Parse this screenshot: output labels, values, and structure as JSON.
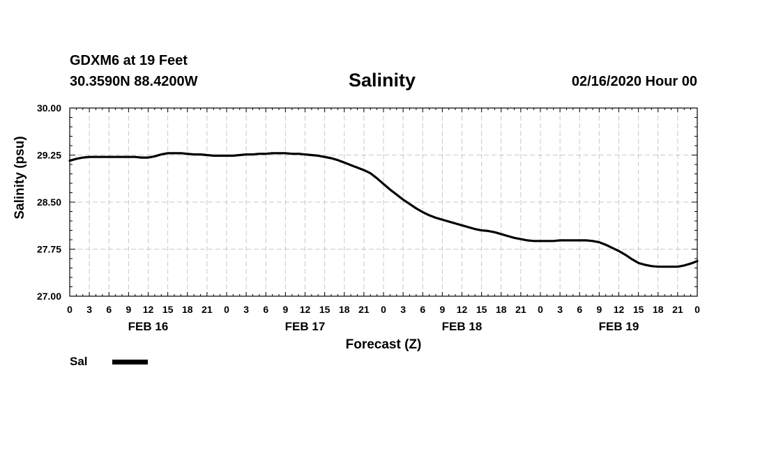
{
  "header": {
    "station": "GDXM6 at 19 Feet",
    "coords": "30.3590N 88.4200W",
    "run": "02/16/2020 Hour 00"
  },
  "chart_data": {
    "type": "line",
    "title": "Salinity",
    "xlabel": "Forecast (Z)",
    "ylabel": "Salinity (psu)",
    "ylim": [
      27.0,
      30.0
    ],
    "yticks": [
      "27.00",
      "27.75",
      "28.50",
      "29.25",
      "30.00"
    ],
    "xlim": [
      0,
      96
    ],
    "xtick_labels": [
      "0",
      "3",
      "6",
      "9",
      "12",
      "15",
      "18",
      "21",
      "0",
      "3",
      "6",
      "9",
      "12",
      "15",
      "18",
      "21",
      "0",
      "3",
      "6",
      "9",
      "12",
      "15",
      "18",
      "21",
      "0",
      "3",
      "6",
      "9",
      "12",
      "15",
      "18",
      "21",
      "0"
    ],
    "day_labels": [
      {
        "label": "FEB 16",
        "hour": 12
      },
      {
        "label": "FEB 17",
        "hour": 36
      },
      {
        "label": "FEB 18",
        "hour": 60
      },
      {
        "label": "FEB 19",
        "hour": 84
      }
    ],
    "grid": true,
    "legend": "bottom-left",
    "series": [
      {
        "name": "Sal",
        "x": [
          0,
          1,
          2,
          3,
          4,
          5,
          6,
          7,
          8,
          9,
          10,
          11,
          12,
          13,
          14,
          15,
          16,
          17,
          18,
          19,
          20,
          21,
          22,
          23,
          24,
          25,
          26,
          27,
          28,
          29,
          30,
          31,
          32,
          33,
          34,
          35,
          36,
          37,
          38,
          39,
          40,
          41,
          42,
          43,
          44,
          45,
          46,
          47,
          48,
          49,
          50,
          51,
          52,
          53,
          54,
          55,
          56,
          57,
          58,
          59,
          60,
          61,
          62,
          63,
          64,
          65,
          66,
          67,
          68,
          69,
          70,
          71,
          72,
          73,
          74,
          75,
          76,
          77,
          78,
          79,
          80,
          81,
          82,
          83,
          84,
          85,
          86,
          87,
          88,
          89,
          90,
          91,
          92,
          93,
          94,
          95,
          96
        ],
        "values": [
          29.16,
          29.19,
          29.21,
          29.22,
          29.22,
          29.22,
          29.22,
          29.22,
          29.22,
          29.22,
          29.22,
          29.21,
          29.21,
          29.23,
          29.26,
          29.28,
          29.28,
          29.28,
          29.27,
          29.26,
          29.26,
          29.25,
          29.24,
          29.24,
          29.24,
          29.24,
          29.25,
          29.26,
          29.26,
          29.27,
          29.27,
          29.28,
          29.28,
          29.28,
          29.27,
          29.27,
          29.26,
          29.25,
          29.24,
          29.22,
          29.2,
          29.17,
          29.13,
          29.09,
          29.05,
          29.01,
          28.96,
          28.88,
          28.79,
          28.7,
          28.62,
          28.54,
          28.47,
          28.4,
          28.34,
          28.29,
          28.25,
          28.22,
          28.19,
          28.16,
          28.13,
          28.1,
          28.07,
          28.05,
          28.04,
          28.02,
          27.99,
          27.96,
          27.93,
          27.91,
          27.89,
          27.88,
          27.88,
          27.88,
          27.88,
          27.89,
          27.89,
          27.89,
          27.89,
          27.89,
          27.88,
          27.86,
          27.82,
          27.77,
          27.72,
          27.66,
          27.59,
          27.53,
          27.5,
          27.48,
          27.47,
          27.47,
          27.47,
          27.47,
          27.49,
          27.52,
          27.56
        ]
      }
    ]
  }
}
